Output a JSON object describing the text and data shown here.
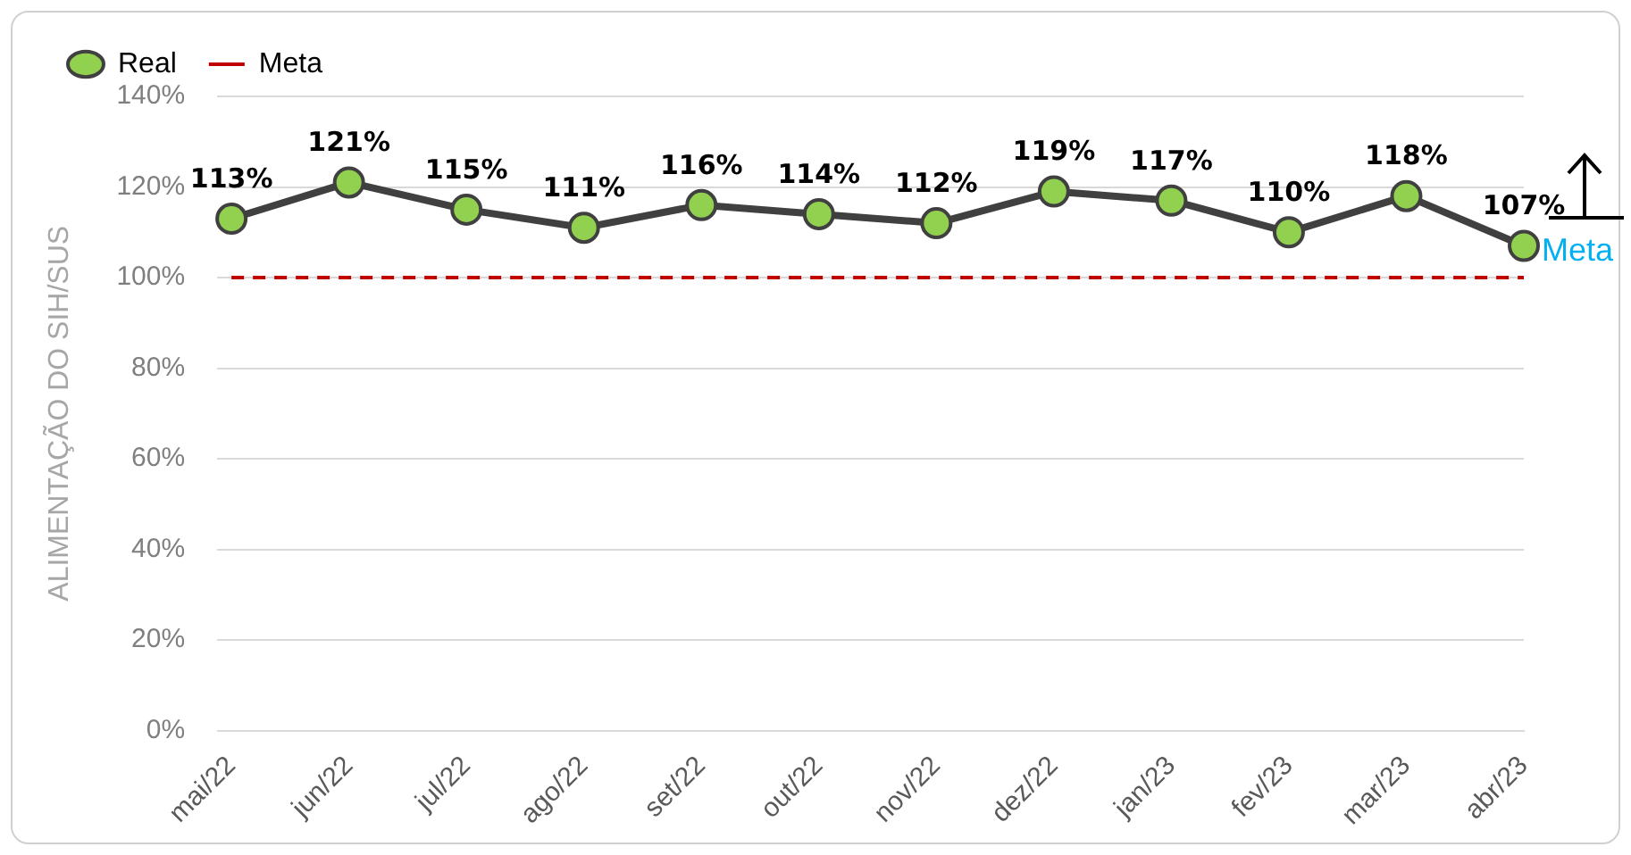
{
  "chart_data": {
    "type": "line",
    "ylabel": "ALIMENTAÇÃO DO SIH/SUS",
    "categories": [
      "mai/22",
      "jun/22",
      "jul/22",
      "ago/22",
      "set/22",
      "out/22",
      "nov/22",
      "dez/22",
      "jan/23",
      "fev/23",
      "mar/23",
      "abr/23"
    ],
    "series": [
      {
        "name": "Real",
        "color": "#404040",
        "marker": "circle",
        "values": [
          113,
          121,
          115,
          111,
          116,
          114,
          112,
          119,
          117,
          110,
          118,
          107
        ],
        "value_labels": [
          "113%",
          "121%",
          "115%",
          "111%",
          "116%",
          "114%",
          "112%",
          "119%",
          "117%",
          "110%",
          "118%",
          "107%"
        ]
      },
      {
        "name": "Meta",
        "color": "#c00000",
        "marker": "none",
        "line_style": "dashed",
        "values": [
          100,
          100,
          100,
          100,
          100,
          100,
          100,
          100,
          100,
          100,
          100,
          100
        ]
      }
    ],
    "ylim": [
      0,
      140
    ],
    "yticks": [
      {
        "value": 0,
        "label": "0%"
      },
      {
        "value": 20,
        "label": "20%"
      },
      {
        "value": 40,
        "label": "40%"
      },
      {
        "value": 60,
        "label": "60%"
      },
      {
        "value": 80,
        "label": "80%"
      },
      {
        "value": 100,
        "label": "100%"
      },
      {
        "value": 120,
        "label": "120%"
      },
      {
        "value": 140,
        "label": "140%"
      }
    ],
    "grid": "y",
    "legend": "top left",
    "annotations": [
      "Meta"
    ]
  }
}
